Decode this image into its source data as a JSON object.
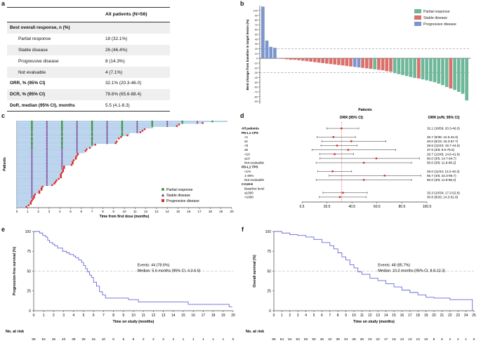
{
  "panels": {
    "a": {
      "label": "a",
      "column_header": "All patients (N=56)",
      "rows": [
        {
          "label": "Best overall response, n (%)",
          "value": "",
          "bold": true,
          "indent": false
        },
        {
          "label": "Partial response",
          "value": "18 (32.1%)",
          "bold": false,
          "indent": true
        },
        {
          "label": "Stable disease",
          "value": "26 (46.4%)",
          "bold": false,
          "indent": true
        },
        {
          "label": "Progressive disease",
          "value": "8 (14.3%)",
          "bold": false,
          "indent": true
        },
        {
          "label": "Not evaluable",
          "value": "4 (7.1%)",
          "bold": false,
          "indent": true
        },
        {
          "label": "ORR, % (95% CI)",
          "value": "32.1% (20.3-46.0)",
          "bold": true,
          "indent": false
        },
        {
          "label": "DCR, % (95% CI)",
          "value": "78.6% (65.6-88.4)",
          "bold": true,
          "indent": false
        },
        {
          "label": "DoR, median (95% CI), months",
          "value": "5.5 (4.1-8.3)",
          "bold": true,
          "indent": false
        }
      ]
    },
    "b": {
      "label": "b",
      "ylabel": "Best change from baseline in target lesion (%)",
      "xlabel": "Patients",
      "legend": [
        {
          "name": "Partial response",
          "color": "#6fb79b"
        },
        {
          "name": "Stable disease",
          "color": "#d9706a"
        },
        {
          "name": "Progressive disease",
          "color": "#7b96cc"
        }
      ]
    },
    "c": {
      "label": "c",
      "ylabel": "Patients",
      "xlabel": "Time from first dose (months)",
      "legend": [
        {
          "name": "Partial response",
          "color": "#3a9a3a",
          "marker": "circle"
        },
        {
          "name": "Stable disease",
          "color": "#7a3a8c",
          "marker": "triangle"
        },
        {
          "name": "Progressive disease",
          "color": "#e0271e",
          "marker": "square"
        }
      ]
    },
    "d": {
      "label": "d",
      "col_left": "ORR (95% CI)",
      "col_right": "ORR (n/N; 95% CI)"
    },
    "e": {
      "label": "e",
      "ylabel": "Progression-free survival (%)",
      "xlabel": "Time on study (months)",
      "events": "Events: 44 (78.6%)",
      "median": "Median: 5.6 months (95% CI, 4.3-6.6)",
      "at_risk_label": "No. at risk"
    },
    "f": {
      "label": "f",
      "ylabel": "Overall survival (%)",
      "xlabel": "Time on study (months)",
      "events": "Events: 48 (85.7%)",
      "median": "Median: 10.3 months (95% CI, 8.8-12.3)",
      "at_risk_label": "No. at risk"
    }
  },
  "chart_data": [
    {
      "panel": "b",
      "type": "bar",
      "ylim": [
        -95,
        110
      ],
      "reference_lines": [
        20,
        -30
      ],
      "yticks": [
        "100",
        "90",
        "80",
        "70",
        "60",
        "50",
        "40",
        "30",
        "20",
        "10",
        "0",
        "-10",
        "-20",
        "-30",
        "-40",
        "-50",
        "-60",
        "-70",
        "-80",
        "-90"
      ],
      "bars": [
        {
          "v": 108,
          "c": "pd"
        },
        {
          "v": 37,
          "c": "pd"
        },
        {
          "v": 24,
          "c": "pd"
        },
        {
          "v": 22,
          "c": "pd"
        },
        {
          "v": 0,
          "c": "sd"
        },
        {
          "v": -1,
          "c": "sd"
        },
        {
          "v": -2,
          "c": "sd"
        },
        {
          "v": -3,
          "c": "sd"
        },
        {
          "v": -3,
          "c": "sd"
        },
        {
          "v": -4,
          "c": "sd"
        },
        {
          "v": -5,
          "c": "sd"
        },
        {
          "v": -6,
          "c": "sd"
        },
        {
          "v": -7,
          "c": "sd"
        },
        {
          "v": -8,
          "c": "sd"
        },
        {
          "v": -9,
          "c": "sd"
        },
        {
          "v": -10,
          "c": "sd"
        },
        {
          "v": -11,
          "c": "sd"
        },
        {
          "v": -12,
          "c": "sd"
        },
        {
          "v": -13,
          "c": "sd"
        },
        {
          "v": -14,
          "c": "sd"
        },
        {
          "v": -15,
          "c": "sd"
        },
        {
          "v": -16,
          "c": "sd"
        },
        {
          "v": -17,
          "c": "sd"
        },
        {
          "v": -18,
          "c": "pd"
        },
        {
          "v": -19,
          "c": "pd"
        },
        {
          "v": -20,
          "c": "sd"
        },
        {
          "v": -21,
          "c": "sd"
        },
        {
          "v": -22,
          "c": "sd"
        },
        {
          "v": -23,
          "c": "pr"
        },
        {
          "v": -24,
          "c": "sd"
        },
        {
          "v": -25,
          "c": "sd"
        },
        {
          "v": -27,
          "c": "sd"
        },
        {
          "v": -28,
          "c": "sd"
        },
        {
          "v": -31,
          "c": "pr"
        },
        {
          "v": -33,
          "c": "pr"
        },
        {
          "v": -35,
          "c": "pr"
        },
        {
          "v": -37,
          "c": "pr"
        },
        {
          "v": -39,
          "c": "pr"
        },
        {
          "v": -41,
          "c": "pr"
        },
        {
          "v": -42,
          "c": "sd"
        },
        {
          "v": -44,
          "c": "pr"
        },
        {
          "v": -46,
          "c": "pr"
        },
        {
          "v": -48,
          "c": "pr"
        },
        {
          "v": -50,
          "c": "pr"
        },
        {
          "v": -53,
          "c": "pr"
        },
        {
          "v": -56,
          "c": "pr"
        },
        {
          "v": -60,
          "c": "pr"
        },
        {
          "v": -63,
          "c": "sd"
        },
        {
          "v": -66,
          "c": "pr"
        },
        {
          "v": -70,
          "c": "pr"
        },
        {
          "v": -74,
          "c": "pr"
        },
        {
          "v": -88,
          "c": "pr"
        }
      ]
    },
    {
      "panel": "c",
      "type": "scatter",
      "xlim": [
        0,
        20
      ],
      "xticks": [
        "0",
        "1",
        "2",
        "3",
        "4",
        "5",
        "6",
        "7",
        "8",
        "9",
        "10",
        "11",
        "12",
        "13",
        "14",
        "15",
        "16",
        "17",
        "18",
        "19",
        "20"
      ],
      "durations": [
        19.6,
        17.3,
        15.1,
        14.9,
        12.7,
        11.9,
        11.7,
        11.5,
        10.5,
        10.3,
        9.7,
        9.5,
        9.3,
        9.3,
        9.2,
        7.3,
        7.1,
        6.8,
        6.5,
        6.4,
        6.3,
        5.7,
        5.6,
        5.5,
        5.5,
        5.3,
        5.2,
        5.2,
        5.1,
        4.4,
        4.4,
        4.3,
        4.3,
        4.2,
        4.1,
        4.1,
        4.1,
        3.9,
        3.7,
        3.6,
        3.5,
        3.3,
        2.4,
        2.3,
        2.3,
        2.1,
        2.1,
        1.7,
        1.6,
        1.6,
        1.5,
        1.4,
        1.3,
        1.3,
        1.1,
        0.9
      ]
    },
    {
      "panel": "d",
      "type": "forest",
      "xticks": [
        "0.5",
        "20.5",
        "40.5",
        "60.5",
        "80.5",
        "100.5"
      ],
      "xlim": [
        0.5,
        100.5
      ],
      "reference": 32.1,
      "rows": [
        {
          "label": "All patients",
          "text": "32.1 (18/56; 20.3-46.0)",
          "est": 32.1,
          "lo": 20.3,
          "hi": 46.0,
          "bold": true
        },
        {
          "label": "PD-L1 CPS",
          "text": "",
          "bold": true
        },
        {
          "label": "<1",
          "text": "25.7 (9/35; 12.5-43.3)",
          "est": 25.7,
          "lo": 12.5,
          "hi": 43.3,
          "indent": true
        },
        {
          "label": "≥1",
          "text": "40.0 (6/15; 16.3-67.7)",
          "est": 40.0,
          "lo": 16.3,
          "hi": 67.7,
          "indent": true
        },
        {
          "label": "<5",
          "text": "28.6 (12/42; 15.7-44.6)",
          "est": 28.6,
          "lo": 15.7,
          "hi": 44.6,
          "indent": true
        },
        {
          "label": "≥5",
          "text": "37.5 (3/8; 8.5-75.5)",
          "est": 37.5,
          "lo": 8.5,
          "hi": 75.5,
          "indent": true
        },
        {
          "label": "<10",
          "text": "26.7 (12/45; 14.6-41.9)",
          "est": 26.7,
          "lo": 14.6,
          "hi": 41.9,
          "indent": true
        },
        {
          "label": "≥10",
          "text": "60.0 (3/5; 14.7-94.7)",
          "est": 60.0,
          "lo": 14.7,
          "hi": 94.7,
          "indent": true
        },
        {
          "label": "Not evaluable",
          "text": "50.0 (3/6; 11.8-88.2)",
          "est": 50.0,
          "lo": 11.8,
          "hi": 88.2,
          "indent": true
        },
        {
          "label": "PD-L1 TPS",
          "text": "",
          "bold": true
        },
        {
          "label": "<1%",
          "text": "25.0 (11/44; 13.2-40.3)",
          "est": 25.0,
          "lo": 13.2,
          "hi": 40.3,
          "indent": true
        },
        {
          "label": "1-49%",
          "text": "66.7 (4/6; 22.3-95.7)",
          "est": 66.7,
          "lo": 22.3,
          "hi": 95.7,
          "indent": true
        },
        {
          "label": "Not evaluable",
          "text": "50.0 (3/6; 11.8-88.2)",
          "est": 50.0,
          "lo": 11.8,
          "hi": 88.2,
          "indent": true
        },
        {
          "label": "CA19-9",
          "text": "",
          "bold": true
        },
        {
          "label": "Baseline level",
          "text": "",
          "indent": true
        },
        {
          "label": "≤1000",
          "text": "33.3 (10/30; 17.3-52.8)",
          "est": 33.3,
          "lo": 17.3,
          "hi": 52.8,
          "indent": true
        },
        {
          "label": ">1000",
          "text": "30.8 (8/26; 14.3-51.8)",
          "est": 30.8,
          "lo": 14.3,
          "hi": 51.8,
          "indent": true
        }
      ]
    },
    {
      "panel": "e",
      "type": "line",
      "xlim": [
        0,
        20
      ],
      "ylim": [
        0,
        100
      ],
      "xticks": [
        "0",
        "1",
        "2",
        "3",
        "4",
        "5",
        "6",
        "7",
        "8",
        "9",
        "10",
        "11",
        "12",
        "13",
        "14",
        "15",
        "16",
        "17",
        "18",
        "19",
        "20"
      ],
      "yticks": [
        "0",
        "25",
        "50",
        "75",
        "100"
      ],
      "at_risk": [
        "56",
        "52",
        "45",
        "40",
        "39",
        "26",
        "16",
        "10",
        "6",
        "6",
        "6",
        "2",
        "2",
        "2",
        "2",
        "1",
        "1",
        "1",
        "1",
        "1",
        "0"
      ],
      "steps": [
        [
          0,
          100
        ],
        [
          0.6,
          98
        ],
        [
          0.9,
          95
        ],
        [
          1.2,
          93
        ],
        [
          1.4,
          89
        ],
        [
          1.6,
          86
        ],
        [
          1.9,
          84
        ],
        [
          2.1,
          82
        ],
        [
          2.4,
          79
        ],
        [
          2.9,
          75
        ],
        [
          3.3,
          73
        ],
        [
          3.6,
          71
        ],
        [
          4.0,
          69
        ],
        [
          4.2,
          67
        ],
        [
          4.5,
          64
        ],
        [
          4.8,
          61
        ],
        [
          5.0,
          57
        ],
        [
          5.2,
          53
        ],
        [
          5.4,
          49
        ],
        [
          5.6,
          45
        ],
        [
          5.8,
          42
        ],
        [
          6.0,
          36
        ],
        [
          6.3,
          31
        ],
        [
          6.6,
          24
        ],
        [
          6.9,
          20
        ],
        [
          7.2,
          16
        ],
        [
          9.5,
          14
        ],
        [
          10.5,
          11
        ],
        [
          15.5,
          8
        ],
        [
          19.6,
          5
        ]
      ]
    },
    {
      "panel": "f",
      "type": "line",
      "xlim": [
        0,
        25
      ],
      "ylim": [
        0,
        100
      ],
      "xticks": [
        "0",
        "1",
        "2",
        "3",
        "4",
        "5",
        "6",
        "7",
        "8",
        "9",
        "10",
        "11",
        "12",
        "13",
        "14",
        "15",
        "16",
        "17",
        "18",
        "19",
        "20",
        "21",
        "22",
        "23",
        "24",
        "25"
      ],
      "yticks": [
        "0",
        "25",
        "50",
        "75",
        "100"
      ],
      "at_risk": [
        "56",
        "54",
        "54",
        "53",
        "50",
        "50",
        "46",
        "42",
        "39",
        "34",
        "28",
        "26",
        "23",
        "22",
        "17",
        "15",
        "13",
        "13",
        "13",
        "10",
        "8",
        "5",
        "2",
        "2",
        "1",
        "0"
      ],
      "steps": [
        [
          0,
          100
        ],
        [
          1,
          98
        ],
        [
          2,
          96
        ],
        [
          3,
          95
        ],
        [
          4,
          93
        ],
        [
          5,
          90
        ],
        [
          6,
          86
        ],
        [
          7,
          82
        ],
        [
          7.5,
          78
        ],
        [
          8,
          73
        ],
        [
          8.5,
          68
        ],
        [
          9,
          64
        ],
        [
          9.5,
          58
        ],
        [
          10,
          54
        ],
        [
          10.5,
          49
        ],
        [
          11,
          46
        ],
        [
          12,
          41
        ],
        [
          13,
          38
        ],
        [
          14,
          34
        ],
        [
          15,
          30
        ],
        [
          16,
          26
        ],
        [
          17,
          23
        ],
        [
          18,
          20
        ],
        [
          19,
          17
        ],
        [
          20,
          16
        ],
        [
          22,
          14
        ],
        [
          24.5,
          14
        ],
        [
          24.8,
          0
        ]
      ]
    }
  ]
}
